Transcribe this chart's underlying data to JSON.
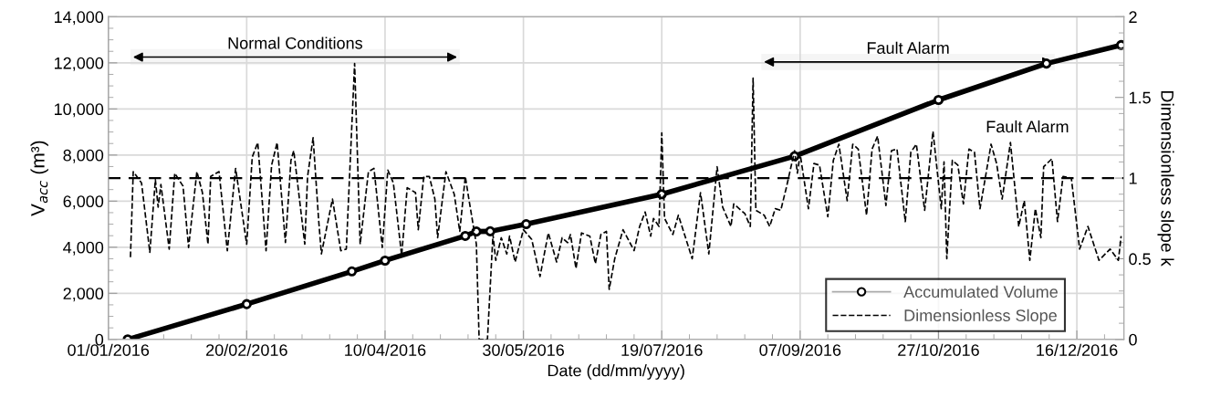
{
  "chart_data": {
    "type": "line",
    "xlabel": "Date (dd/mm/yyyy)",
    "ylabel": "V$_{acc}$ (m³)",
    "y2label": "Dimensionless slope k",
    "xlim": [
      "2016-01-01",
      "2017-01-02"
    ],
    "xticks": [
      {
        "value": "2016-01-01",
        "label": "01/01/2016"
      },
      {
        "value": "2016-02-20",
        "label": "20/02/2016"
      },
      {
        "value": "2016-04-10",
        "label": "10/04/2016"
      },
      {
        "value": "2016-05-30",
        "label": "30/05/2016"
      },
      {
        "value": "2016-07-19",
        "label": "19/07/2016"
      },
      {
        "value": "2016-09-07",
        "label": "07/09/2016"
      },
      {
        "value": "2016-10-27",
        "label": "27/10/2016"
      },
      {
        "value": "2016-12-16",
        "label": "16/12/2016"
      }
    ],
    "ylim": [
      0,
      14000
    ],
    "yticks": [
      {
        "value": 0,
        "label": "0"
      },
      {
        "value": 2000,
        "label": "2,000"
      },
      {
        "value": 4000,
        "label": "4,000"
      },
      {
        "value": 6000,
        "label": "6,000"
      },
      {
        "value": 8000,
        "label": "8,000"
      },
      {
        "value": 10000,
        "label": "10,000"
      },
      {
        "value": 12000,
        "label": "12,000"
      },
      {
        "value": 14000,
        "label": "14,000"
      }
    ],
    "y2lim": [
      0,
      2
    ],
    "y2ticks": [
      0,
      0.5,
      1,
      1.5,
      2
    ],
    "grid": true,
    "legend": "bottom right",
    "series": [
      {
        "name": "Accumulated Volume",
        "color": "#000000",
        "marker": "circle",
        "line_style": "solid",
        "x": [
          "2016-01-08",
          "2016-02-20",
          "2016-03-29",
          "2016-04-10",
          "2016-05-09",
          "2016-05-13",
          "2016-05-18",
          "2016-05-31",
          "2016-07-19",
          "2016-09-05",
          "2016-10-27",
          "2016-12-05",
          "2017-01-01"
        ],
        "values": [
          0,
          1530,
          2950,
          3420,
          4490,
          4680,
          4690,
          5000,
          6300,
          7950,
          10390,
          11970,
          12770
        ]
      },
      {
        "name": "Dimensionless Slope",
        "color": "#000000",
        "marker": "none",
        "line_style": "dashed",
        "axis": "y2",
        "x": [
          "2016-01-09",
          "2016-01-10",
          "2016-01-13",
          "2016-01-16",
          "2016-01-18",
          "2016-01-19",
          "2016-01-20",
          "2016-01-23",
          "2016-01-25",
          "2016-01-28",
          "2016-01-30",
          "2016-02-02",
          "2016-02-04",
          "2016-02-06",
          "2016-02-07",
          "2016-02-10",
          "2016-02-13",
          "2016-02-16",
          "2016-02-20",
          "2016-02-22",
          "2016-02-24",
          "2016-02-27",
          "2016-02-29",
          "2016-03-02",
          "2016-03-05",
          "2016-03-07",
          "2016-03-08",
          "2016-03-12",
          "2016-03-13",
          "2016-03-15",
          "2016-03-17",
          "2016-03-18",
          "2016-03-22",
          "2016-03-25",
          "2016-03-27",
          "2016-03-30",
          "2016-04-01",
          "2016-04-04",
          "2016-04-06",
          "2016-04-09",
          "2016-04-11",
          "2016-04-13",
          "2016-04-16",
          "2016-04-18",
          "2016-04-21",
          "2016-04-22",
          "2016-04-24",
          "2016-04-26",
          "2016-04-28",
          "2016-04-29",
          "2016-05-02",
          "2016-05-05",
          "2016-05-07",
          "2016-05-09",
          "2016-05-10",
          "2016-05-13",
          "2016-05-14",
          "2016-05-17",
          "2016-05-19",
          "2016-05-20",
          "2016-05-22",
          "2016-05-24",
          "2016-05-25",
          "2016-05-27",
          "2016-05-30",
          "2016-06-02",
          "2016-06-05",
          "2016-06-08",
          "2016-06-11",
          "2016-06-13",
          "2016-06-15",
          "2016-06-16",
          "2016-06-18",
          "2016-06-20",
          "2016-06-23",
          "2016-06-25",
          "2016-06-27",
          "2016-06-29",
          "2016-06-30",
          "2016-07-02",
          "2016-07-05",
          "2016-07-09",
          "2016-07-11",
          "2016-07-13",
          "2016-07-15",
          "2016-07-16",
          "2016-07-18",
          "2016-07-19",
          "2016-07-20",
          "2016-07-23",
          "2016-07-25",
          "2016-07-30",
          "2016-08-02",
          "2016-08-05",
          "2016-08-08",
          "2016-08-10",
          "2016-08-13",
          "2016-08-14",
          "2016-08-18",
          "2016-08-20",
          "2016-08-21",
          "2016-08-22",
          "2016-08-25",
          "2016-08-27",
          "2016-08-29",
          "2016-08-31",
          "2016-09-02",
          "2016-09-05",
          "2016-09-06",
          "2016-09-07",
          "2016-09-10",
          "2016-09-12",
          "2016-09-14",
          "2016-09-17",
          "2016-09-19",
          "2016-09-21",
          "2016-09-24",
          "2016-09-26",
          "2016-09-28",
          "2016-10-01",
          "2016-10-03",
          "2016-10-05",
          "2016-10-08",
          "2016-10-10",
          "2016-10-12",
          "2016-10-15",
          "2016-10-17",
          "2016-10-19",
          "2016-10-22",
          "2016-10-25",
          "2016-10-28",
          "2016-10-29",
          "2016-10-30",
          "2016-11-01",
          "2016-11-03",
          "2016-11-05",
          "2016-11-07",
          "2016-11-09",
          "2016-11-11",
          "2016-11-15",
          "2016-11-17",
          "2016-11-19",
          "2016-11-22",
          "2016-11-25",
          "2016-11-27",
          "2016-11-29",
          "2016-12-01",
          "2016-12-03",
          "2016-12-04",
          "2016-12-07",
          "2016-12-09",
          "2016-12-11",
          "2016-12-14",
          "2016-12-17",
          "2016-12-20",
          "2016-12-24",
          "2016-12-28",
          "2016-12-31",
          "2017-01-01"
        ],
        "values": [
          0.51,
          1.04,
          0.97,
          0.54,
          0.99,
          0.82,
          0.96,
          0.56,
          1.03,
          0.95,
          0.57,
          1.04,
          0.91,
          0.59,
          1.01,
          1.04,
          0.55,
          1.06,
          0.59,
          1.13,
          1.22,
          0.55,
          1.08,
          1.22,
          0.6,
          1.11,
          1.17,
          0.59,
          1.01,
          1.25,
          0.74,
          0.53,
          0.87,
          0.55,
          0.56,
          1.71,
          0.59,
          1.04,
          1.06,
          0.57,
          1.05,
          0.97,
          0.52,
          0.94,
          0.91,
          0.68,
          1.01,
          1.01,
          0.87,
          0.63,
          1.04,
          0.9,
          0.67,
          1.01,
          0.9,
          0.59,
          0.0,
          0.0,
          0.65,
          0.49,
          0.63,
          0.53,
          0.64,
          0.48,
          0.68,
          0.62,
          0.39,
          0.66,
          0.48,
          0.63,
          0.6,
          0.65,
          0.44,
          0.66,
          0.64,
          0.47,
          0.65,
          0.67,
          0.31,
          0.5,
          0.68,
          0.55,
          0.7,
          0.79,
          0.64,
          0.75,
          0.7,
          1.28,
          0.75,
          0.65,
          0.77,
          0.5,
          0.91,
          0.53,
          1.07,
          0.82,
          0.7,
          0.84,
          0.78,
          0.7,
          1.62,
          0.8,
          0.77,
          0.7,
          0.81,
          0.8,
          0.94,
          1.17,
          1.03,
          1.15,
          0.81,
          1.09,
          1.08,
          0.76,
          1.11,
          1.21,
          0.86,
          1.21,
          1.18,
          0.77,
          1.18,
          1.26,
          0.83,
          1.17,
          1.18,
          0.73,
          1.16,
          1.21,
          0.8,
          1.29,
          0.81,
          1.1,
          0.5,
          1.11,
          1.08,
          0.84,
          1.18,
          1.16,
          0.81,
          1.21,
          1.09,
          0.87,
          1.22,
          0.7,
          0.86,
          0.49,
          0.81,
          0.63,
          1.07,
          1.12,
          0.73,
          1.01,
          1.0,
          0.56,
          0.7,
          0.49,
          0.56,
          0.49,
          0.64
        ]
      }
    ],
    "ref_lines": [
      {
        "axis": "y2",
        "value": 1,
        "color": "#000000",
        "line_style": "dashed"
      }
    ],
    "bands": [
      {
        "axis": "x",
        "from": "2016-01-09",
        "to": "2016-05-07",
        "label": "Normal Conditions"
      },
      {
        "axis": "x",
        "from": "2016-08-24",
        "to": "2016-12-08",
        "label": "Fault Alarm"
      }
    ],
    "annotations": [
      "Fault Alarm"
    ]
  }
}
